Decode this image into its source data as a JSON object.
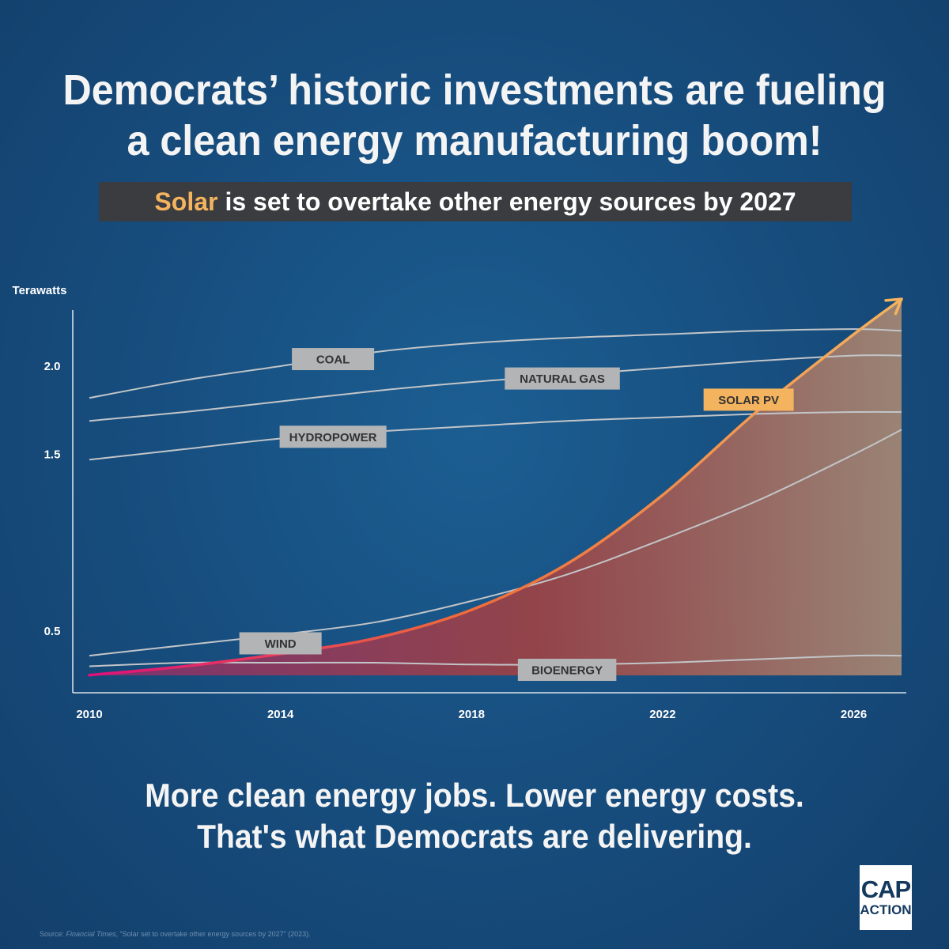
{
  "headline": {
    "line1": "Democrats’ historic investments are fueling",
    "line2": "a clean energy manufacturing boom!"
  },
  "subhead": {
    "highlight": "Solar",
    "rest": "is set to overtake other energy sources by 2027",
    "highlight_color": "#f4b35e"
  },
  "chart_data": {
    "type": "area",
    "ylabel": "Terawatts",
    "xlabel": "",
    "xlim": [
      2010,
      2027.1
    ],
    "ylim": [
      0.15,
      2.3
    ],
    "x_ticks": [
      2010,
      2014,
      2018,
      2022,
      2026
    ],
    "y_ticks": [
      {
        "value": 0.5,
        "label": "0.5"
      },
      {
        "value": 1.5,
        "label": "1.5"
      },
      {
        "value": 2.0,
        "label": "2.0"
      }
    ],
    "grid": false,
    "legend": "inline labels",
    "series": [
      {
        "name": "COAL",
        "color": "#c2c5c8",
        "label_at": {
          "x": 2015.1,
          "y": 2.04
        },
        "points": [
          [
            2010,
            1.82
          ],
          [
            2012,
            1.92
          ],
          [
            2014,
            2.0
          ],
          [
            2016,
            2.08
          ],
          [
            2018,
            2.13
          ],
          [
            2020,
            2.16
          ],
          [
            2022,
            2.18
          ],
          [
            2024,
            2.2
          ],
          [
            2026,
            2.21
          ],
          [
            2027,
            2.2
          ]
        ]
      },
      {
        "name": "NATURAL GAS",
        "color": "#c2c5c8",
        "label_at": {
          "x": 2019.9,
          "y": 1.93
        },
        "points": [
          [
            2010,
            1.69
          ],
          [
            2012,
            1.74
          ],
          [
            2014,
            1.8
          ],
          [
            2016,
            1.86
          ],
          [
            2018,
            1.91
          ],
          [
            2020,
            1.95
          ],
          [
            2022,
            1.99
          ],
          [
            2024,
            2.03
          ],
          [
            2026,
            2.06
          ],
          [
            2027,
            2.06
          ]
        ]
      },
      {
        "name": "HYDROPOWER",
        "color": "#c2c5c8",
        "label_at": {
          "x": 2015.1,
          "y": 1.6
        },
        "points": [
          [
            2010,
            1.47
          ],
          [
            2012,
            1.53
          ],
          [
            2014,
            1.59
          ],
          [
            2016,
            1.63
          ],
          [
            2018,
            1.66
          ],
          [
            2020,
            1.69
          ],
          [
            2022,
            1.71
          ],
          [
            2024,
            1.73
          ],
          [
            2026,
            1.74
          ],
          [
            2027,
            1.74
          ]
        ]
      },
      {
        "name": "WIND",
        "color": "#c2c5c8",
        "label_at": {
          "x": 2014.0,
          "y": 0.43
        },
        "points": [
          [
            2010,
            0.36
          ],
          [
            2012,
            0.42
          ],
          [
            2014,
            0.48
          ],
          [
            2016,
            0.55
          ],
          [
            2018,
            0.67
          ],
          [
            2020,
            0.82
          ],
          [
            2022,
            1.02
          ],
          [
            2024,
            1.24
          ],
          [
            2026,
            1.5
          ],
          [
            2027,
            1.64
          ]
        ]
      },
      {
        "name": "BIOENERGY",
        "color": "#c2c5c8",
        "label_at": {
          "x": 2020.0,
          "y": 0.28
        },
        "points": [
          [
            2010,
            0.3
          ],
          [
            2012,
            0.32
          ],
          [
            2014,
            0.32
          ],
          [
            2016,
            0.32
          ],
          [
            2018,
            0.31
          ],
          [
            2020,
            0.31
          ],
          [
            2022,
            0.32
          ],
          [
            2024,
            0.34
          ],
          [
            2026,
            0.36
          ],
          [
            2027,
            0.36
          ]
        ]
      },
      {
        "name": "SOLAR PV",
        "color": "#f4b35e",
        "highlight": true,
        "label_at": {
          "x": 2023.8,
          "y": 1.81
        },
        "points": [
          [
            2010,
            0.25
          ],
          [
            2012,
            0.3
          ],
          [
            2014,
            0.37
          ],
          [
            2016,
            0.46
          ],
          [
            2018,
            0.62
          ],
          [
            2020,
            0.88
          ],
          [
            2022,
            1.27
          ],
          [
            2024,
            1.75
          ],
          [
            2026,
            2.18
          ],
          [
            2027,
            2.38
          ]
        ]
      }
    ]
  },
  "footer": {
    "line1": "More clean energy jobs. Lower energy costs.",
    "line2": "That's what Democrats are delivering."
  },
  "source": {
    "prefix": "Source: ",
    "publication": "Financial Times",
    "rest": ", “Solar set to overtake other energy sources by 2027” (2023)."
  },
  "logo": {
    "line1": "CAP",
    "line2": "ACTION"
  }
}
